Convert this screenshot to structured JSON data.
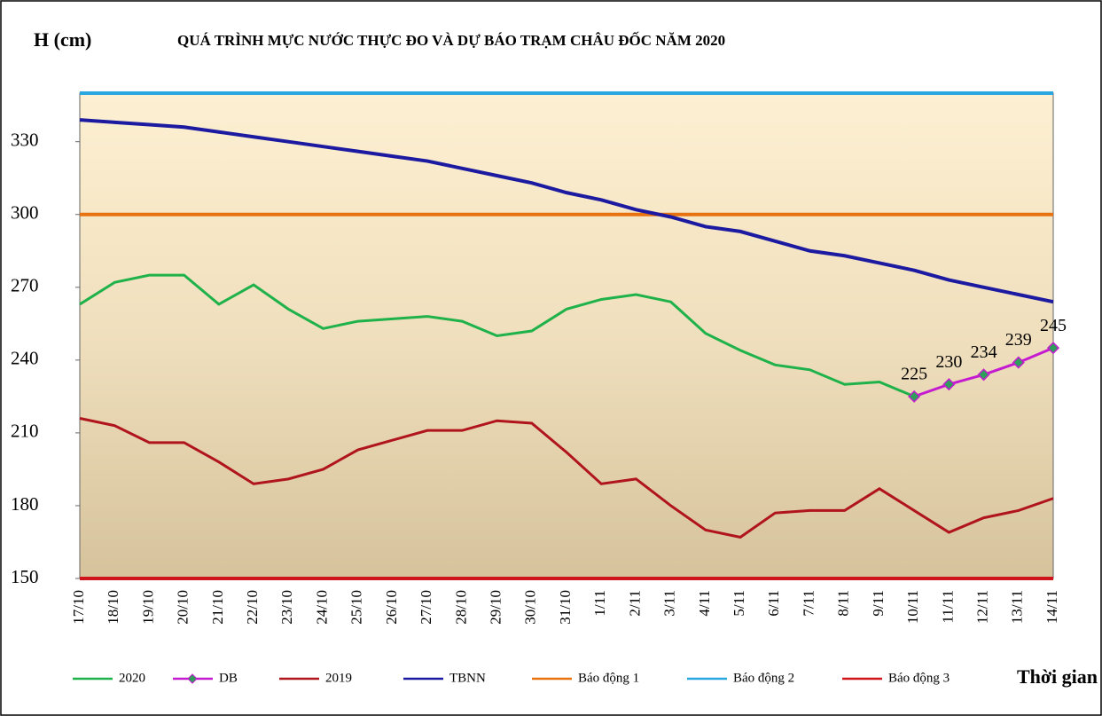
{
  "chart_data": {
    "type": "line",
    "title": "QUÁ TRÌNH MỰC NƯỚC THỰC ĐO VÀ DỰ BÁO TRẠM CHÂU ĐỐC NĂM 2020",
    "y_label": "H (cm)",
    "x_label": "Thời gian",
    "categories": [
      "17/10",
      "18/10",
      "19/10",
      "20/10",
      "21/10",
      "22/10",
      "23/10",
      "24/10",
      "25/10",
      "26/10",
      "27/10",
      "28/10",
      "29/10",
      "30/10",
      "31/10",
      "1/11",
      "2/11",
      "3/11",
      "4/11",
      "5/11",
      "6/11",
      "7/11",
      "8/11",
      "9/11",
      "10/11",
      "11/11",
      "12/11",
      "13/11",
      "14/11"
    ],
    "series": [
      {
        "name": "2020",
        "color": "#1fb24a",
        "values": [
          263,
          272,
          275,
          275,
          263,
          271,
          261,
          253,
          256,
          257,
          258,
          256,
          250,
          252,
          261,
          265,
          267,
          264,
          251,
          244,
          238,
          236,
          230,
          231,
          225,
          null,
          null,
          null,
          null
        ]
      },
      {
        "name": "DB",
        "color": "#c41bd0",
        "marker": "diamond",
        "values": [
          null,
          null,
          null,
          null,
          null,
          null,
          null,
          null,
          null,
          null,
          null,
          null,
          null,
          null,
          null,
          null,
          null,
          null,
          null,
          null,
          null,
          null,
          null,
          null,
          225,
          230,
          234,
          239,
          245
        ]
      },
      {
        "name": "2019",
        "color": "#b0141c",
        "values": [
          216,
          213,
          206,
          206,
          198,
          189,
          191,
          195,
          203,
          207,
          211,
          211,
          215,
          214,
          202,
          189,
          191,
          180,
          170,
          167,
          177,
          178,
          178,
          187,
          178,
          169,
          175,
          178,
          183
        ]
      },
      {
        "name": "TBNN",
        "color": "#1c1aa0",
        "values": [
          339,
          338,
          337,
          336,
          334,
          332,
          330,
          328,
          326,
          324,
          322,
          319,
          316,
          313,
          309,
          306,
          302,
          299,
          295,
          293,
          289,
          285,
          283,
          280,
          277,
          273,
          270,
          267,
          264
        ]
      },
      {
        "name": "Báo động 1",
        "color": "#e8720f",
        "values": [
          300,
          300,
          300,
          300,
          300,
          300,
          300,
          300,
          300,
          300,
          300,
          300,
          300,
          300,
          300,
          300,
          300,
          300,
          300,
          300,
          300,
          300,
          300,
          300,
          300,
          300,
          300,
          300,
          300
        ]
      },
      {
        "name": "Báo động 2",
        "color": "#2aa7e0",
        "values": [
          350,
          350,
          350,
          350,
          350,
          350,
          350,
          350,
          350,
          350,
          350,
          350,
          350,
          350,
          350,
          350,
          350,
          350,
          350,
          350,
          350,
          350,
          350,
          350,
          350,
          350,
          350,
          350,
          350
        ]
      },
      {
        "name": "Báo động 3",
        "color": "#d0141c",
        "values": [
          150,
          150,
          150,
          150,
          150,
          150,
          150,
          150,
          150,
          150,
          150,
          150,
          150,
          150,
          150,
          150,
          150,
          150,
          150,
          150,
          150,
          150,
          150,
          150,
          150,
          150,
          150,
          150,
          150
        ]
      }
    ],
    "ylim": [
      150,
      350
    ],
    "yticks": [
      150,
      180,
      210,
      240,
      270,
      300,
      330
    ],
    "data_labels_series": "DB"
  }
}
